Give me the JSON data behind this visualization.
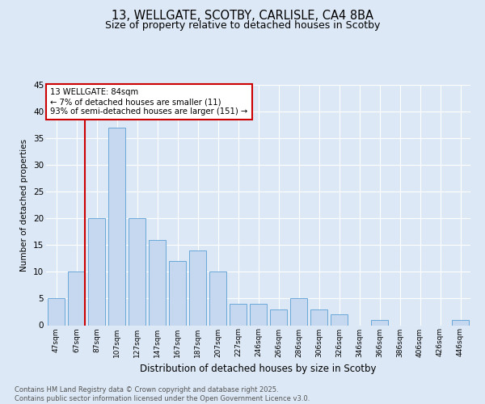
{
  "title1": "13, WELLGATE, SCOTBY, CARLISLE, CA4 8BA",
  "title2": "Size of property relative to detached houses in Scotby",
  "xlabel": "Distribution of detached houses by size in Scotby",
  "ylabel": "Number of detached properties",
  "categories": [
    "47sqm",
    "67sqm",
    "87sqm",
    "107sqm",
    "127sqm",
    "147sqm",
    "167sqm",
    "187sqm",
    "207sqm",
    "227sqm",
    "246sqm",
    "266sqm",
    "286sqm",
    "306sqm",
    "326sqm",
    "346sqm",
    "366sqm",
    "386sqm",
    "406sqm",
    "426sqm",
    "446sqm"
  ],
  "values": [
    5,
    10,
    20,
    37,
    20,
    16,
    12,
    14,
    10,
    4,
    4,
    3,
    5,
    3,
    2,
    0,
    1,
    0,
    0,
    0,
    1
  ],
  "bar_color": "#c5d8ef",
  "bar_edge_color": "#5a9fd4",
  "annotation_title": "13 WELLGATE: 84sqm",
  "annotation_line1": "← 7% of detached houses are smaller (11)",
  "annotation_line2": "93% of semi-detached houses are larger (151) →",
  "annotation_box_color": "#ffffff",
  "annotation_box_edge": "#cc0000",
  "red_line_color": "#cc0000",
  "footer1": "Contains HM Land Registry data © Crown copyright and database right 2025.",
  "footer2": "Contains public sector information licensed under the Open Government Licence v3.0.",
  "background_color": "#dce8f5",
  "plot_background": "#dce8f5",
  "grid_color": "#ffffff",
  "ylim": [
    0,
    45
  ],
  "yticks": [
    0,
    5,
    10,
    15,
    20,
    25,
    30,
    35,
    40,
    45
  ]
}
